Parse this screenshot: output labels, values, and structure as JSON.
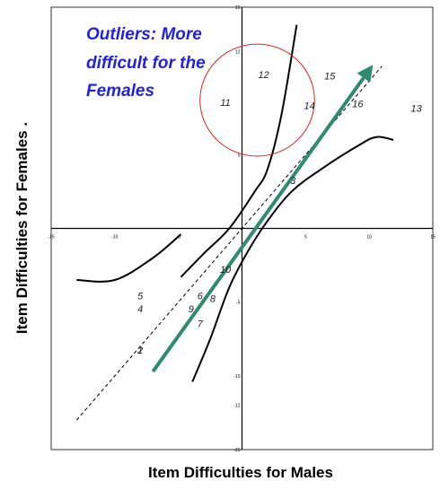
{
  "chart_data": {
    "type": "scatter",
    "title": "",
    "xlabel": "Item Difficulties for Males",
    "ylabel": "Item Difficulties for Females .",
    "xlim": [
      -15,
      15
    ],
    "ylim": [
      -15,
      15
    ],
    "xticks": [
      "-15",
      "-10",
      "-5",
      "5",
      "10",
      "15"
    ],
    "yticks": [
      "15",
      "12",
      "5",
      "-5",
      "-10",
      "-12",
      "-15"
    ],
    "grid": false,
    "legend": "none",
    "annotation": [
      "Outliers: More",
      "difficult for the",
      "Females"
    ],
    "points": [
      {
        "label": "1",
        "x": -8.0,
        "y": -8.5
      },
      {
        "label": "2",
        "x": -8.0,
        "y": -8.5
      },
      {
        "label": "3",
        "x": 4.0,
        "y": 3.0
      },
      {
        "label": "4",
        "x": -8.0,
        "y": -5.7
      },
      {
        "label": "5",
        "x": -8.0,
        "y": -4.8
      },
      {
        "label": "6",
        "x": -3.3,
        "y": -4.8
      },
      {
        "label": "7",
        "x": -3.3,
        "y": -6.7
      },
      {
        "label": "8",
        "x": -2.3,
        "y": -5.0
      },
      {
        "label": "9",
        "x": -4.0,
        "y": -5.7
      },
      {
        "label": "10",
        "x": -1.3,
        "y": -3.0
      },
      {
        "label": "11",
        "x": -1.3,
        "y": 8.3
      },
      {
        "label": "12",
        "x": 1.7,
        "y": 10.2
      },
      {
        "label": "13",
        "x": 13.7,
        "y": 7.9
      },
      {
        "label": "14",
        "x": 5.3,
        "y": 8.1
      },
      {
        "label": "15",
        "x": 6.9,
        "y": 10.1
      },
      {
        "label": "16",
        "x": 9.1,
        "y": 8.2
      }
    ],
    "identity_line": {
      "from": [
        -13.0,
        -13.0
      ],
      "to": [
        11.0,
        11.0
      ],
      "style": "dashed",
      "color": "#000000"
    },
    "trend_arrow": {
      "from": [
        -7.0,
        -9.7
      ],
      "to": [
        10.3,
        11.1
      ],
      "color": "#2e8b6f"
    },
    "upper_band": [
      [
        -4.8,
        -3.3
      ],
      [
        -3.0,
        -1.7
      ],
      [
        -1.0,
        0.0
      ],
      [
        1.0,
        2.5
      ],
      [
        2.0,
        4.0
      ],
      [
        3.1,
        7.7
      ],
      [
        4.3,
        13.8
      ]
    ],
    "lower_band": [
      [
        -3.9,
        -10.4
      ],
      [
        -2.5,
        -7.5
      ],
      [
        -1.0,
        -4.0
      ],
      [
        0.5,
        -1.5
      ],
      [
        2.0,
        0.5
      ],
      [
        3.9,
        2.5
      ],
      [
        6.2,
        4.0
      ],
      [
        9.3,
        5.7
      ],
      [
        10.6,
        6.2
      ],
      [
        11.9,
        6.0
      ]
    ],
    "upper_left_tail": [
      [
        -13.0,
        -3.5
      ],
      [
        -10.0,
        -3.5
      ],
      [
        -7.0,
        -2.0
      ],
      [
        -4.8,
        -0.4
      ]
    ],
    "outlier_circle": {
      "cx": 1.2,
      "cy": 8.7,
      "rx": 4.5,
      "ry": 3.8,
      "color": "#e02020"
    },
    "colors": {
      "annotation": "#1f1fe6",
      "arrow": "#2e8b6f",
      "circle": "#e02020",
      "axes": "#000000"
    }
  }
}
